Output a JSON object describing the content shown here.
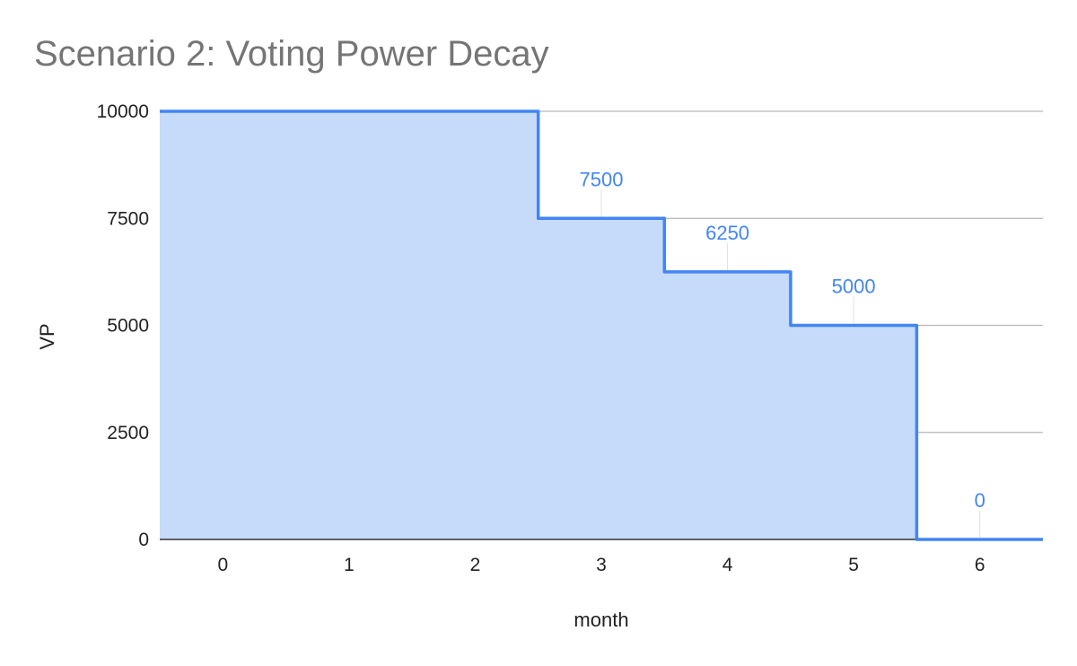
{
  "chart_data": {
    "type": "area",
    "title": "Scenario 2: Voting Power Decay",
    "xlabel": "month",
    "ylabel": "VP",
    "categories": [
      "0",
      "1",
      "2",
      "3",
      "4",
      "5",
      "6"
    ],
    "series": [
      {
        "values": [
          10000,
          10000,
          10000,
          7500,
          6250,
          5000,
          0
        ]
      }
    ],
    "step": true,
    "ylim": [
      0,
      10000
    ],
    "yticks": [
      "0",
      "2500",
      "5000",
      "7500",
      "10000"
    ],
    "data_labels": [
      {
        "category": "3",
        "text": "7500"
      },
      {
        "category": "4",
        "text": "6250"
      },
      {
        "category": "5",
        "text": "5000"
      },
      {
        "category": "6",
        "text": "0"
      }
    ],
    "grid": true,
    "colors": {
      "line": "#4285f4",
      "fill": "#c6daf9",
      "grid": "#b7b7b7",
      "label": "#4285f4",
      "axis": "#333333"
    }
  }
}
